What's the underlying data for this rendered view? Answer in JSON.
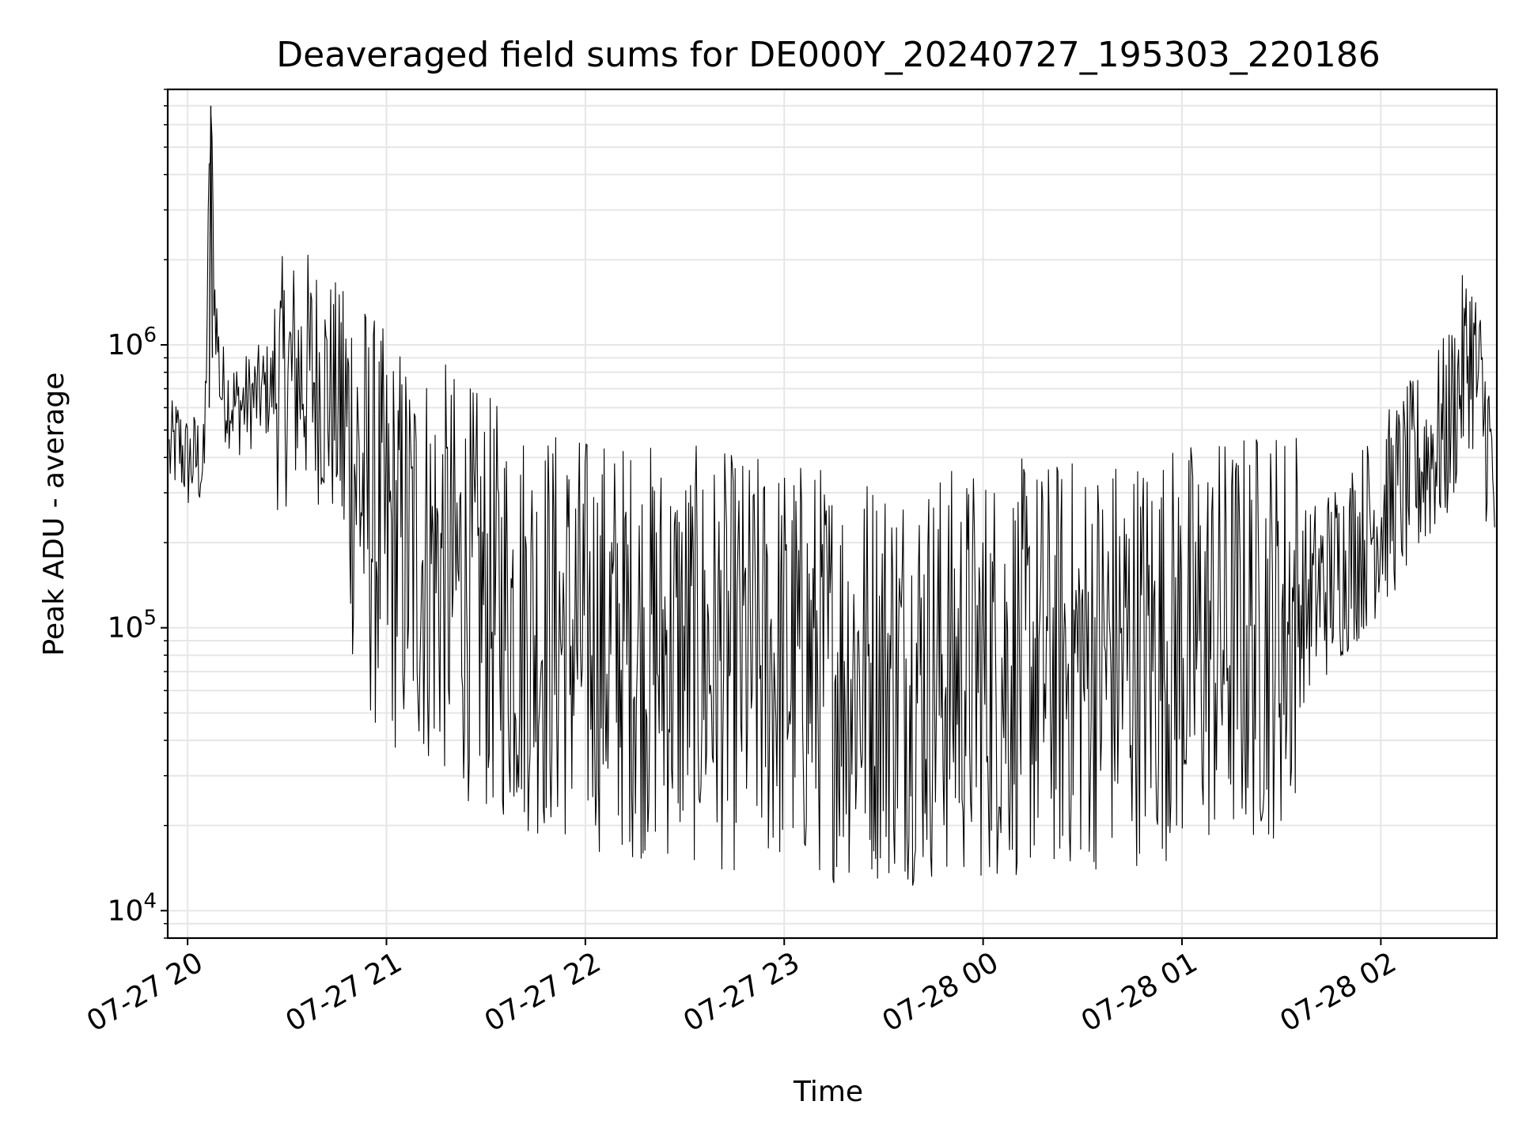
{
  "chart_data": {
    "type": "line",
    "title": "Deaveraged field sums for DE000Y_20240727_195303_220186",
    "xlabel": "Time",
    "ylabel": "Peak ADU - average",
    "y_scale": "log",
    "ylim": [
      8000,
      8000000
    ],
    "y_ticks": [
      {
        "value": 10000,
        "base": "10",
        "exp": "4"
      },
      {
        "value": 100000,
        "base": "10",
        "exp": "5"
      },
      {
        "value": 1000000,
        "base": "10",
        "exp": "6"
      }
    ],
    "x_ticks": [
      {
        "value": "2024-07-27T20:00",
        "label": "07-27 20"
      },
      {
        "value": "2024-07-27T21:00",
        "label": "07-27 21"
      },
      {
        "value": "2024-07-27T22:00",
        "label": "07-27 22"
      },
      {
        "value": "2024-07-27T23:00",
        "label": "07-27 23"
      },
      {
        "value": "2024-07-28T00:00",
        "label": "07-28 00"
      },
      {
        "value": "2024-07-28T01:00",
        "label": "07-28 01"
      },
      {
        "value": "2024-07-28T02:00",
        "label": "07-28 02"
      }
    ],
    "xlim": [
      "2024-07-27T19:54",
      "2024-07-28T02:35"
    ],
    "grid": true,
    "line_color": "#000000",
    "series": [
      {
        "points": [
          [
            "2024-07-27T19:54",
            400000
          ],
          [
            "2024-07-27T19:57",
            450000
          ],
          [
            "2024-07-27T20:00",
            380000
          ],
          [
            "2024-07-27T20:03",
            400000
          ],
          [
            "2024-07-27T20:05",
            350000
          ],
          [
            "2024-07-27T20:07",
            7000000
          ],
          [
            "2024-07-27T20:08",
            1600000
          ],
          [
            "2024-07-27T20:10",
            700000
          ],
          [
            "2024-07-27T20:15",
            600000
          ],
          [
            "2024-07-27T20:20",
            650000
          ],
          [
            "2024-07-27T20:25",
            700000
          ],
          [
            "2024-07-27T20:30",
            750000
          ],
          [
            "2024-07-27T20:35",
            800000
          ],
          [
            "2024-07-27T20:40",
            750000
          ],
          [
            "2024-07-27T20:45",
            600000
          ],
          [
            "2024-07-27T20:50",
            400000
          ],
          [
            "2024-07-27T20:55",
            250000
          ],
          [
            "2024-07-27T21:00",
            200000
          ],
          [
            "2024-07-27T21:10",
            180000
          ],
          [
            "2024-07-27T21:20",
            150000
          ],
          [
            "2024-07-27T21:30",
            120000
          ],
          [
            "2024-07-27T21:45",
            100000
          ],
          [
            "2024-07-27T22:00",
            90000
          ],
          [
            "2024-07-27T22:15",
            85000
          ],
          [
            "2024-07-27T22:30",
            80000
          ],
          [
            "2024-07-27T22:45",
            75000
          ],
          [
            "2024-07-27T23:00",
            75000
          ],
          [
            "2024-07-27T23:15",
            70000
          ],
          [
            "2024-07-27T23:30",
            70000
          ],
          [
            "2024-07-27T23:45",
            68000
          ],
          [
            "2024-07-28T00:00",
            70000
          ],
          [
            "2024-07-28T00:15",
            72000
          ],
          [
            "2024-07-28T00:30",
            75000
          ],
          [
            "2024-07-28T00:45",
            80000
          ],
          [
            "2024-07-28T01:00",
            85000
          ],
          [
            "2024-07-28T01:15",
            90000
          ],
          [
            "2024-07-28T01:30",
            100000
          ],
          [
            "2024-07-28T01:45",
            150000
          ],
          [
            "2024-07-28T02:00",
            250000
          ],
          [
            "2024-07-28T02:10",
            350000
          ],
          [
            "2024-07-28T02:20",
            500000
          ],
          [
            "2024-07-28T02:27",
            1000000
          ],
          [
            "2024-07-28T02:32",
            500000
          ],
          [
            "2024-07-28T02:35",
            250000
          ]
        ]
      }
    ]
  }
}
